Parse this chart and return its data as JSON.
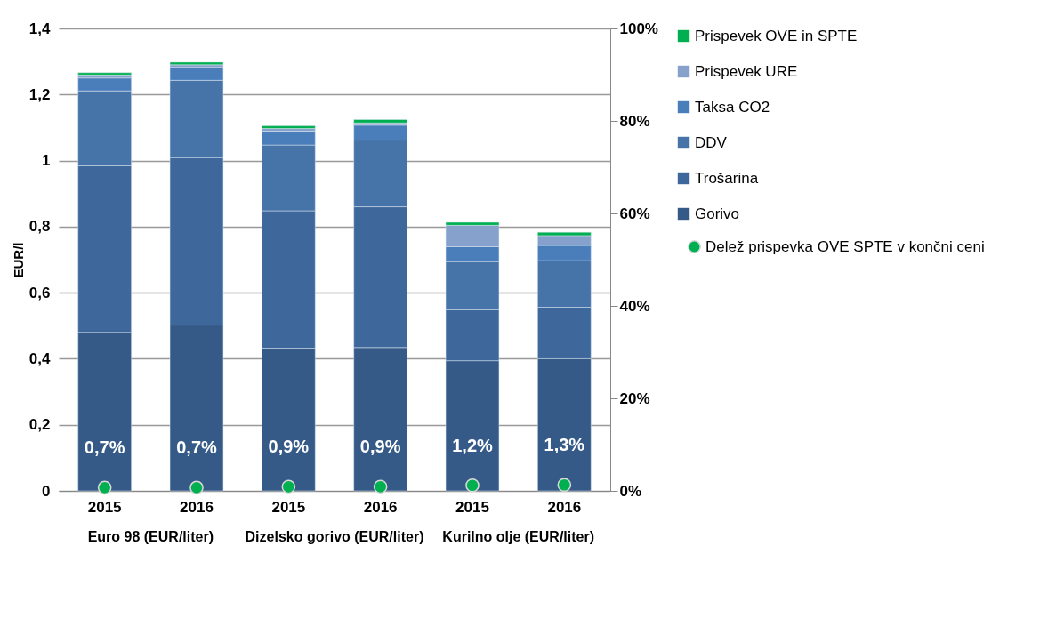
{
  "chart_data": {
    "type": "bar",
    "stacked": true,
    "ylabel": "EUR/l",
    "categories": [
      "2015",
      "2016",
      "2015",
      "2016",
      "2015",
      "2016"
    ],
    "annotations": [
      "Euro 98 (EUR/liter)",
      "Dizelsko gorivo (EUR/liter)",
      "Kurilno olje (EUR/liter)"
    ],
    "series": [
      {
        "name": "Gorivo",
        "color": "#355a87",
        "values": [
          0.48,
          0.502,
          0.432,
          0.434,
          0.394,
          0.4
        ]
      },
      {
        "name": "Trošarina",
        "color": "#3e689b",
        "values": [
          0.504,
          0.507,
          0.416,
          0.426,
          0.154,
          0.156
        ]
      },
      {
        "name": "DDV",
        "color": "#4673a8",
        "values": [
          0.227,
          0.234,
          0.199,
          0.202,
          0.146,
          0.141
        ]
      },
      {
        "name": "Taksa CO2",
        "color": "#4a7ebb",
        "values": [
          0.039,
          0.039,
          0.042,
          0.045,
          0.045,
          0.046
        ]
      },
      {
        "name": "Prispevek URE",
        "color": "#86a1cc",
        "values": [
          0.009,
          0.008,
          0.008,
          0.007,
          0.065,
          0.03
        ]
      },
      {
        "name": "Prispevek OVE in SPTE",
        "color": "#00b050",
        "values": [
          0.007,
          0.008,
          0.008,
          0.01,
          0.009,
          0.01
        ]
      },
      {
        "name": "Delež prispevka OVE SPTE v končni ceni",
        "type": "scatter",
        "axis": "y2",
        "marker": "circle",
        "color": "#00b050",
        "values": [
          0.7,
          0.7,
          0.9,
          0.9,
          1.2,
          1.3
        ],
        "value_labels": [
          "0,7%",
          "0,7%",
          "0,9%",
          "0,9%",
          "1,2%",
          "1,3%"
        ]
      }
    ],
    "ylim": [
      0,
      1.4
    ],
    "yticks": [
      0,
      {
        "value": 0.2,
        "label": "0,2"
      },
      {
        "value": 0.4,
        "label": "0,4"
      },
      {
        "value": 0.6,
        "label": "0,6"
      },
      {
        "value": 0.8,
        "label": "0,8"
      },
      1,
      {
        "value": 1.2,
        "label": "1,2"
      },
      {
        "value": 1.4,
        "label": "1,4"
      }
    ],
    "y2lim": [
      0,
      100
    ],
    "y2ticks": [
      {
        "value": 0,
        "label": "0%"
      },
      {
        "value": 20,
        "label": "20%"
      },
      {
        "value": 40,
        "label": "40%"
      },
      {
        "value": 60,
        "label": "60%"
      },
      {
        "value": 80,
        "label": "80%"
      },
      {
        "value": 100,
        "label": "100%"
      }
    ],
    "grid": "y",
    "legend": "right"
  }
}
